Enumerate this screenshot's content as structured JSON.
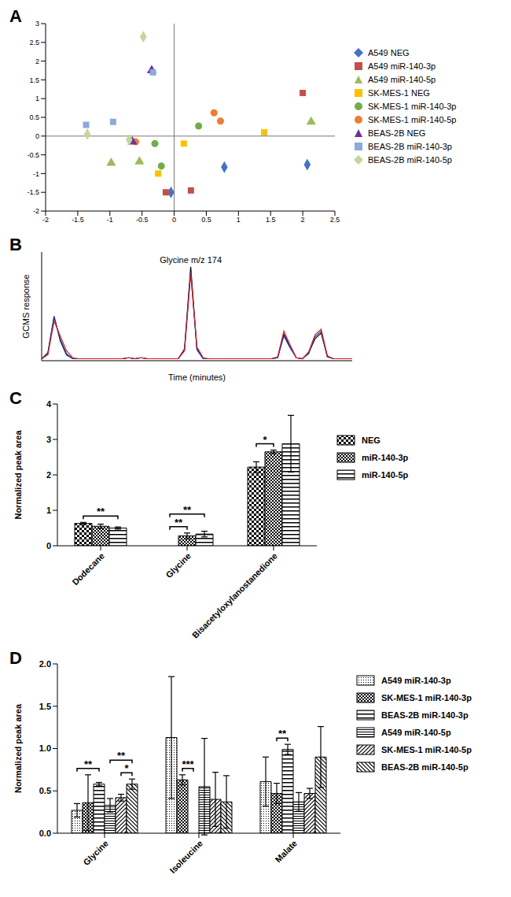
{
  "chart_data": [
    {
      "type": "scatter",
      "title": "A",
      "xlim": [
        -2,
        2.5
      ],
      "xticks": [
        -2,
        -1.5,
        -1,
        -0.5,
        0,
        0.5,
        1,
        1.5,
        2,
        2.5
      ],
      "ylim": [
        -2,
        3
      ],
      "yticks": [
        -2,
        -1.5,
        -1,
        -0.5,
        0,
        0.5,
        1,
        1.5,
        2,
        2.5,
        3
      ],
      "legend": "right",
      "series": [
        {
          "name": "A549 NEG",
          "color": "#4472C4",
          "marker": "diamond",
          "x": [
            2.07,
            0.78,
            -0.05
          ],
          "y": [
            -0.76,
            -0.83,
            -1.5
          ]
        },
        {
          "name": "A549 miR-140-3p",
          "color": "#C0504D",
          "marker": "square",
          "x": [
            2.0,
            0.26,
            -0.13
          ],
          "y": [
            1.15,
            -1.45,
            -1.5
          ]
        },
        {
          "name": "A549 miR-140-5p",
          "color": "#9BBB59",
          "marker": "triangle",
          "x": [
            2.13,
            -0.98,
            -0.54
          ],
          "y": [
            0.38,
            -0.72,
            -0.68
          ]
        },
        {
          "name": "SK-MES-1 NEG",
          "color": "#FFC000",
          "marker": "square",
          "x": [
            1.4,
            0.15,
            -0.25
          ],
          "y": [
            0.1,
            -0.2,
            -1.0
          ]
        },
        {
          "name": "SK-MES-1 miR-140-3p",
          "color": "#70AD47",
          "marker": "circle",
          "x": [
            0.38,
            -0.3,
            -0.2
          ],
          "y": [
            0.27,
            -0.2,
            -0.8
          ]
        },
        {
          "name": "SK-MES-1 miR-140-5p",
          "color": "#ED7D31",
          "marker": "circle",
          "x": [
            0.62,
            0.72,
            -0.6
          ],
          "y": [
            0.62,
            0.4,
            -0.15
          ]
        },
        {
          "name": "BEAS-2B NEG",
          "color": "#7030A0",
          "marker": "triangle",
          "x": [
            -0.35,
            -0.65
          ],
          "y": [
            1.75,
            -0.15
          ]
        },
        {
          "name": "BEAS-2B miR-140-3p",
          "color": "#8EA9DB",
          "marker": "square",
          "x": [
            -1.37,
            -0.95,
            -0.33
          ],
          "y": [
            0.3,
            0.38,
            1.7
          ]
        },
        {
          "name": "BEAS-2B miR-140-5p",
          "color": "#C3D69B",
          "marker": "diamond",
          "x": [
            -0.48,
            -1.35,
            -0.7
          ],
          "y": [
            2.65,
            0.05,
            -0.1
          ]
        }
      ]
    },
    {
      "type": "line",
      "title": "B",
      "x_label": "Time (minutes)",
      "y_label": "GCMS response",
      "tick_labels": false,
      "xlim": [
        0,
        100
      ],
      "ylim": [
        0,
        110
      ],
      "x": [
        0,
        2,
        4,
        6,
        8,
        10,
        12,
        14,
        16,
        18,
        20,
        22,
        24,
        26,
        28,
        30,
        32,
        34,
        36,
        38,
        40,
        42,
        44,
        46,
        48,
        50,
        52,
        54,
        56,
        58,
        60,
        62,
        64,
        66,
        68,
        70,
        72,
        74,
        76,
        78,
        80,
        82,
        84,
        86,
        88,
        90,
        92,
        94,
        96,
        98,
        100
      ],
      "series": [
        {
          "color": "#000000",
          "values": [
            2,
            8,
            45,
            20,
            6,
            2,
            2,
            2,
            2,
            2,
            2,
            2,
            2,
            2,
            3,
            2,
            3,
            2,
            2,
            2,
            2,
            2,
            2,
            12,
            95,
            12,
            2,
            2,
            2,
            2,
            2,
            2,
            2,
            2,
            2,
            2,
            2,
            2,
            3,
            27,
            14,
            3,
            2,
            8,
            22,
            28,
            4,
            2,
            2,
            2,
            2
          ]
        },
        {
          "color": "#1F3FBF",
          "values": [
            2,
            7,
            44,
            22,
            7,
            2,
            2,
            2,
            2,
            2,
            2,
            2,
            2,
            2,
            3,
            2,
            3,
            2,
            2,
            2,
            2,
            2,
            2,
            11,
            90,
            11,
            2,
            2,
            2,
            2,
            2,
            2,
            2,
            2,
            2,
            2,
            2,
            2,
            3,
            25,
            13,
            3,
            2,
            7,
            24,
            30,
            4,
            2,
            2,
            2,
            2
          ]
        },
        {
          "color": "#D62020",
          "values": [
            2,
            6,
            40,
            25,
            10,
            3,
            2,
            2,
            2,
            2,
            2,
            2,
            2,
            2,
            3,
            2,
            3,
            2,
            2,
            2,
            2,
            2,
            2,
            10,
            88,
            14,
            3,
            2,
            2,
            2,
            2,
            2,
            2,
            2,
            2,
            2,
            2,
            2,
            4,
            30,
            16,
            3,
            2,
            9,
            26,
            32,
            5,
            2,
            2,
            2,
            2
          ]
        }
      ],
      "annotations": [
        {
          "text": "Glycine m/z 174",
          "x": 48,
          "y": 95
        }
      ]
    },
    {
      "type": "bar",
      "title": "C",
      "y_label": "Normalized peak area",
      "categories": [
        "Dodecane",
        "Glycine",
        "Bisacetyloxylanostanedione"
      ],
      "ylim": [
        0,
        4
      ],
      "yticks": [
        0,
        1,
        2,
        3,
        4
      ],
      "legend": "right",
      "series": [
        {
          "name": "NEG",
          "color": "#000000",
          "values": [
            0.63,
            0,
            2.22
          ],
          "errors": [
            0.03,
            0,
            0.15
          ]
        },
        {
          "name": "miR-140-3p",
          "color": "#000000",
          "values": [
            0.55,
            0.28,
            2.65
          ],
          "errors": [
            0.06,
            0.08,
            0.05
          ]
        },
        {
          "name": "miR-140-5p",
          "color": "#000000",
          "values": [
            0.5,
            0.33,
            2.88
          ],
          "errors": [
            0.03,
            0.08,
            0.8
          ]
        }
      ],
      "significance": [
        {
          "category": "Dodecane",
          "from": "NEG",
          "to": "miR-140-5p",
          "label": "**"
        },
        {
          "category": "Glycine",
          "from": "NEG",
          "to": "miR-140-3p",
          "label": "**"
        },
        {
          "category": "Glycine",
          "from": "NEG",
          "to": "miR-140-5p",
          "label": "**"
        },
        {
          "category": "Bisacetyloxylanostanedione",
          "from": "NEG",
          "to": "miR-140-3p",
          "label": "*"
        }
      ]
    },
    {
      "type": "bar",
      "title": "D",
      "y_label": "Normalized peak area",
      "categories": [
        "Glycine",
        "Isoleucine",
        "Malate"
      ],
      "ylim": [
        0,
        2
      ],
      "yticks": [
        {
          "value": 0,
          "label": "0.0"
        },
        0.5,
        {
          "value": 1,
          "label": "1.0"
        },
        1.5,
        {
          "value": 2,
          "label": "2.0"
        }
      ],
      "legend": "right",
      "series": [
        {
          "name": "A549 miR-140-3p",
          "color": "#000000",
          "values": [
            0.27,
            1.13,
            0.61
          ],
          "errors": [
            0.08,
            0.72,
            0.29
          ]
        },
        {
          "name": "SK-MES-1 miR-140-3p",
          "color": "#000000",
          "values": [
            0.36,
            0.63,
            0.47
          ],
          "errors": [
            0.33,
            0.06,
            0.12
          ]
        },
        {
          "name": "BEAS-2B miR-140-3p",
          "color": "#000000",
          "values": [
            0.58,
            0,
            0.99
          ],
          "errors": [
            0.02,
            0,
            0.06
          ]
        },
        {
          "name": "A549 miR-140-5p",
          "color": "#000000",
          "values": [
            0.33,
            0.55,
            0.37
          ],
          "errors": [
            0.08,
            0.57,
            0.11
          ]
        },
        {
          "name": "SK-MES-1 miR-140-5p",
          "color": "#000000",
          "values": [
            0.42,
            0.4,
            0.47
          ],
          "errors": [
            0.04,
            0.32,
            0.06
          ]
        },
        {
          "name": "BEAS-2B miR-140-5p",
          "color": "#000000",
          "values": [
            0.58,
            0.37,
            0.9
          ],
          "errors": [
            0.06,
            0.31,
            0.36
          ]
        }
      ],
      "significance": [
        {
          "category": "Glycine",
          "from": "A549 miR-140-3p",
          "to": "BEAS-2B miR-140-3p",
          "label": "**"
        },
        {
          "category": "Glycine",
          "from": "SK-MES-1 miR-140-5p",
          "to": "BEAS-2B miR-140-5p",
          "label": "*"
        },
        {
          "category": "Glycine",
          "from": "A549 miR-140-5p",
          "to": "BEAS-2B miR-140-5p",
          "label": "**"
        },
        {
          "category": "Isoleucine",
          "from": "SK-MES-1 miR-140-3p",
          "to": "BEAS-2B miR-140-3p",
          "label": "***"
        },
        {
          "category": "Malate",
          "from": "SK-MES-1 miR-140-3p",
          "to": "BEAS-2B miR-140-3p",
          "label": "**"
        }
      ]
    }
  ]
}
